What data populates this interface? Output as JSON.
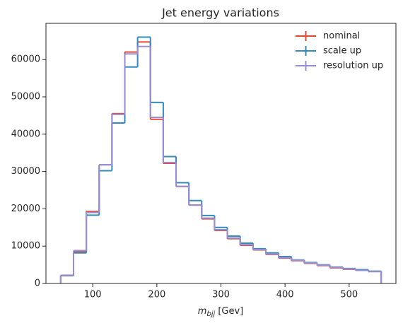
{
  "chart_data": {
    "type": "histogram",
    "title": "Jet energy variations",
    "xlabel_symbol": "m",
    "xlabel_subscript": "bjj",
    "xlabel_unit": "[Gev]",
    "bins": [
      50,
      70,
      90,
      110,
      130,
      150,
      170,
      190,
      210,
      230,
      250,
      270,
      290,
      310,
      330,
      350,
      370,
      390,
      410,
      430,
      450,
      470,
      490,
      510,
      530,
      550
    ],
    "series": [
      {
        "name": "nominal",
        "color": "#E24A33",
        "values": [
          2100,
          8500,
          19300,
          31800,
          45500,
          62000,
          64700,
          44000,
          32200,
          26000,
          21000,
          17300,
          14200,
          12000,
          10200,
          9000,
          7800,
          6800,
          6100,
          5400,
          4800,
          4200,
          3800,
          3500,
          3200
        ]
      },
      {
        "name": "scale up",
        "color": "#348ABD",
        "values": [
          2100,
          8200,
          18300,
          30200,
          43000,
          58000,
          66000,
          48500,
          34000,
          27000,
          22200,
          18200,
          15000,
          12700,
          10800,
          9300,
          8200,
          7200,
          6300,
          5600,
          5000,
          4400,
          4000,
          3700,
          3300
        ]
      },
      {
        "name": "resolution up",
        "color": "#988ED5",
        "values": [
          2200,
          8800,
          19000,
          31800,
          45300,
          61500,
          63500,
          44500,
          32400,
          26000,
          21000,
          17500,
          14400,
          12200,
          10400,
          9100,
          7900,
          6900,
          6200,
          5500,
          4900,
          4300,
          3900,
          3500,
          3200
        ]
      }
    ],
    "xlim": [
      27,
      573
    ],
    "ylim": [
      0,
      69700
    ],
    "xticks": [
      100,
      200,
      300,
      400,
      500
    ],
    "yticks": [
      0,
      10000,
      20000,
      30000,
      40000,
      50000,
      60000
    ],
    "legend": "upper right"
  }
}
